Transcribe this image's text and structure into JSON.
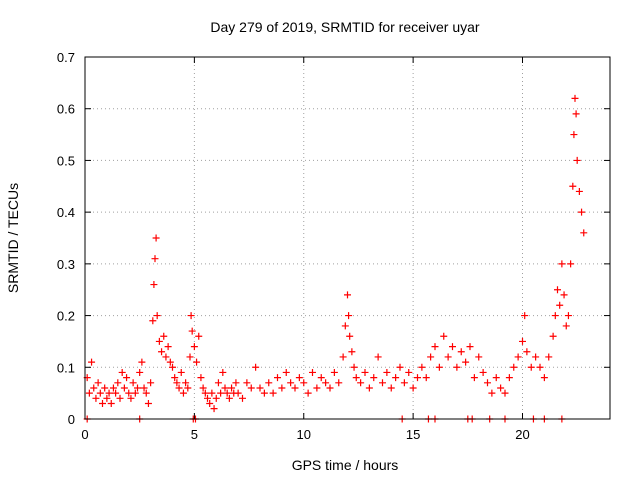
{
  "chart_data": {
    "type": "scatter",
    "title": "Day 279 of 2019, SRMTID for receiver uyar",
    "xlabel": "GPS time / hours",
    "ylabel": "SRMTID / TECUs",
    "xlim": [
      0,
      24
    ],
    "ylim": [
      0,
      0.7
    ],
    "xticks": [
      0,
      5,
      10,
      15,
      20
    ],
    "yticks": [
      0,
      0.1,
      0.2,
      0.3,
      0.4,
      0.5,
      0.6,
      0.7
    ],
    "xtick_labels": [
      "0",
      "5",
      "10",
      "15",
      "20"
    ],
    "ytick_labels": [
      "0",
      "0.1",
      "0.2",
      "0.3",
      "0.4",
      "0.5",
      "0.6",
      "0.7"
    ],
    "grid": true,
    "marker": "+",
    "color": "#ff0000",
    "series": [
      {
        "name": "SRMTID",
        "points": [
          [
            0.1,
            0.08
          ],
          [
            0.2,
            0.05
          ],
          [
            0.3,
            0.11
          ],
          [
            0.4,
            0.06
          ],
          [
            0.5,
            0.04
          ],
          [
            0.6,
            0.07
          ],
          [
            0.7,
            0.05
          ],
          [
            0.8,
            0.03
          ],
          [
            0.9,
            0.06
          ],
          [
            1.0,
            0.04
          ],
          [
            1.1,
            0.05
          ],
          [
            1.2,
            0.03
          ],
          [
            1.3,
            0.06
          ],
          [
            1.4,
            0.05
          ],
          [
            1.5,
            0.07
          ],
          [
            1.6,
            0.04
          ],
          [
            1.7,
            0.09
          ],
          [
            1.8,
            0.06
          ],
          [
            1.9,
            0.08
          ],
          [
            2.0,
            0.05
          ],
          [
            2.1,
            0.04
          ],
          [
            2.2,
            0.07
          ],
          [
            2.3,
            0.05
          ],
          [
            2.4,
            0.06
          ],
          [
            2.5,
            0.09
          ],
          [
            2.6,
            0.11
          ],
          [
            2.7,
            0.06
          ],
          [
            2.8,
            0.05
          ],
          [
            2.9,
            0.03
          ],
          [
            3.0,
            0.07
          ],
          [
            3.1,
            0.19
          ],
          [
            3.15,
            0.26
          ],
          [
            3.2,
            0.31
          ],
          [
            3.25,
            0.35
          ],
          [
            3.3,
            0.2
          ],
          [
            3.4,
            0.15
          ],
          [
            3.5,
            0.13
          ],
          [
            3.6,
            0.16
          ],
          [
            3.7,
            0.12
          ],
          [
            3.8,
            0.14
          ],
          [
            3.9,
            0.11
          ],
          [
            4.0,
            0.1
          ],
          [
            4.1,
            0.08
          ],
          [
            4.2,
            0.07
          ],
          [
            4.3,
            0.06
          ],
          [
            4.4,
            0.09
          ],
          [
            4.5,
            0.05
          ],
          [
            4.6,
            0.07
          ],
          [
            4.7,
            0.06
          ],
          [
            4.8,
            0.12
          ],
          [
            4.85,
            0.2
          ],
          [
            4.9,
            0.17
          ],
          [
            5.0,
            0.14
          ],
          [
            5.1,
            0.11
          ],
          [
            5.2,
            0.16
          ],
          [
            5.3,
            0.08
          ],
          [
            5.4,
            0.06
          ],
          [
            5.5,
            0.05
          ],
          [
            5.6,
            0.04
          ],
          [
            5.7,
            0.03
          ],
          [
            5.8,
            0.05
          ],
          [
            5.9,
            0.02
          ],
          [
            6.0,
            0.04
          ],
          [
            6.1,
            0.07
          ],
          [
            6.2,
            0.05
          ],
          [
            6.3,
            0.09
          ],
          [
            6.4,
            0.06
          ],
          [
            6.5,
            0.05
          ],
          [
            6.6,
            0.04
          ],
          [
            6.7,
            0.06
          ],
          [
            6.8,
            0.05
          ],
          [
            6.9,
            0.07
          ],
          [
            7.0,
            0.05
          ],
          [
            7.2,
            0.04
          ],
          [
            7.4,
            0.07
          ],
          [
            7.6,
            0.06
          ],
          [
            7.8,
            0.1
          ],
          [
            8.0,
            0.06
          ],
          [
            8.2,
            0.05
          ],
          [
            8.4,
            0.07
          ],
          [
            8.6,
            0.05
          ],
          [
            8.8,
            0.08
          ],
          [
            9.0,
            0.06
          ],
          [
            9.2,
            0.09
          ],
          [
            9.4,
            0.07
          ],
          [
            9.6,
            0.06
          ],
          [
            9.8,
            0.08
          ],
          [
            10.0,
            0.07
          ],
          [
            10.2,
            0.05
          ],
          [
            10.4,
            0.09
          ],
          [
            10.6,
            0.06
          ],
          [
            10.8,
            0.08
          ],
          [
            11.0,
            0.07
          ],
          [
            11.2,
            0.06
          ],
          [
            11.4,
            0.09
          ],
          [
            11.6,
            0.07
          ],
          [
            11.8,
            0.12
          ],
          [
            11.9,
            0.18
          ],
          [
            12.0,
            0.24
          ],
          [
            12.05,
            0.2
          ],
          [
            12.1,
            0.16
          ],
          [
            12.2,
            0.13
          ],
          [
            12.3,
            0.1
          ],
          [
            12.4,
            0.08
          ],
          [
            12.6,
            0.07
          ],
          [
            12.8,
            0.09
          ],
          [
            13.0,
            0.06
          ],
          [
            13.2,
            0.08
          ],
          [
            13.4,
            0.12
          ],
          [
            13.6,
            0.07
          ],
          [
            13.8,
            0.09
          ],
          [
            14.0,
            0.06
          ],
          [
            14.2,
            0.08
          ],
          [
            14.4,
            0.1
          ],
          [
            14.6,
            0.07
          ],
          [
            14.8,
            0.09
          ],
          [
            15.0,
            0.06
          ],
          [
            15.2,
            0.08
          ],
          [
            15.4,
            0.1
          ],
          [
            15.6,
            0.08
          ],
          [
            15.8,
            0.12
          ],
          [
            16.0,
            0.14
          ],
          [
            16.2,
            0.1
          ],
          [
            16.4,
            0.16
          ],
          [
            16.6,
            0.12
          ],
          [
            16.8,
            0.14
          ],
          [
            17.0,
            0.1
          ],
          [
            17.2,
            0.13
          ],
          [
            17.4,
            0.11
          ],
          [
            17.6,
            0.14
          ],
          [
            17.8,
            0.08
          ],
          [
            18.0,
            0.12
          ],
          [
            18.2,
            0.09
          ],
          [
            18.4,
            0.07
          ],
          [
            18.6,
            0.05
          ],
          [
            18.8,
            0.08
          ],
          [
            19.0,
            0.06
          ],
          [
            19.2,
            0.05
          ],
          [
            19.4,
            0.08
          ],
          [
            19.6,
            0.1
          ],
          [
            19.8,
            0.12
          ],
          [
            20.0,
            0.15
          ],
          [
            20.1,
            0.2
          ],
          [
            20.2,
            0.13
          ],
          [
            20.4,
            0.1
          ],
          [
            20.6,
            0.12
          ],
          [
            20.8,
            0.1
          ],
          [
            21.0,
            0.08
          ],
          [
            21.2,
            0.12
          ],
          [
            21.4,
            0.16
          ],
          [
            21.5,
            0.2
          ],
          [
            21.6,
            0.25
          ],
          [
            21.7,
            0.22
          ],
          [
            21.8,
            0.3
          ],
          [
            21.9,
            0.24
          ],
          [
            22.0,
            0.18
          ],
          [
            22.1,
            0.2
          ],
          [
            22.2,
            0.3
          ],
          [
            22.3,
            0.45
          ],
          [
            22.35,
            0.55
          ],
          [
            22.4,
            0.62
          ],
          [
            22.45,
            0.59
          ],
          [
            22.5,
            0.5
          ],
          [
            22.6,
            0.44
          ],
          [
            22.7,
            0.4
          ],
          [
            22.8,
            0.36
          ]
        ],
        "zero_points": [
          0.1,
          2.5,
          4.95,
          5.05,
          14.5,
          15.7,
          16.0,
          17.5,
          17.7,
          18.5,
          19.2,
          20.5,
          21.0,
          21.8
        ]
      }
    ]
  }
}
